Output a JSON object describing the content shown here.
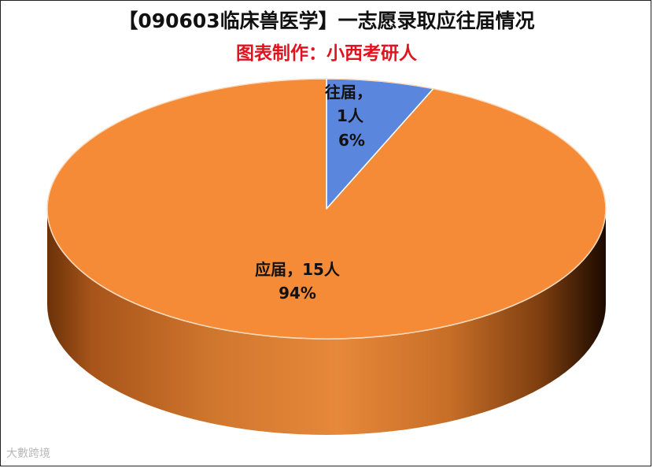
{
  "chart_data": {
    "type": "pie",
    "title": "【090603临床兽医学】一志愿录取应往届情况",
    "subtitle": "图表制作：小西考研人",
    "slices": [
      {
        "label": "往届",
        "count_text": "1人",
        "value": 1,
        "percent": "6%",
        "color": "#5a86dd"
      },
      {
        "label": "应届",
        "count_text": "15人",
        "value": 15,
        "percent": "94%",
        "color": "#f58b37"
      }
    ],
    "data_labels": [
      {
        "lines": [
          "往届，",
          "1人",
          "6%"
        ]
      },
      {
        "lines": [
          "应届，15人",
          "94%"
        ]
      }
    ],
    "legend": "none"
  },
  "watermark": "大數跨境"
}
